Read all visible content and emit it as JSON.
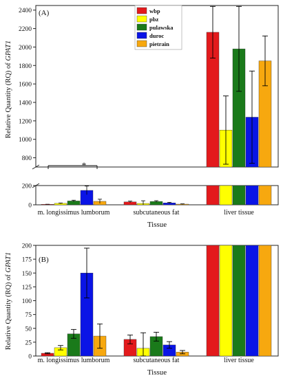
{
  "chart_data": [
    {
      "type": "bar",
      "panel_label": "(A)",
      "categories": [
        "m. longissimus lumborum",
        "subcutaneous fat",
        "liver tissue"
      ],
      "series": [
        {
          "name": "wbp",
          "color": "#e31a1c",
          "values": [
            5,
            30,
            2160
          ],
          "errors": [
            1,
            8,
            280
          ]
        },
        {
          "name": "pbz",
          "color": "#ffff00",
          "values": [
            15,
            14,
            1100
          ],
          "errors": [
            4,
            28,
            370
          ]
        },
        {
          "name": "pulawska",
          "color": "#1a7a1a",
          "values": [
            40,
            35,
            1980
          ],
          "errors": [
            8,
            8,
            460
          ]
        },
        {
          "name": "duroc",
          "color": "#0a14e6",
          "values": [
            150,
            20,
            1240
          ],
          "errors": [
            45,
            6,
            500
          ]
        },
        {
          "name": "pietrain",
          "color": "#f7a80f",
          "values": [
            36,
            7,
            1850
          ],
          "errors": [
            22,
            3,
            270
          ]
        }
      ],
      "ylabel_pre": "Relative Quantity (RQ) of ",
      "ylabel_gene": "GPAT1",
      "xlabel": "Tissue",
      "upper_axis": {
        "ylim": [
          700,
          2450
        ],
        "ticks": [
          800,
          1000,
          1200,
          1400,
          1600,
          1800,
          2000,
          2200,
          2400
        ]
      },
      "lower_axis": {
        "ylim": [
          0,
          200
        ],
        "ticks": [
          0,
          200
        ]
      },
      "annotation": "*",
      "legend_position": "top-center"
    },
    {
      "type": "bar",
      "panel_label": "(B)",
      "categories": [
        "m. longissimus lumborum",
        "subcutaneous fat",
        "liver tissue"
      ],
      "series": [
        {
          "name": "wbp",
          "color": "#e31a1c",
          "values": [
            5,
            30,
            200
          ],
          "errors": [
            1,
            8,
            0
          ]
        },
        {
          "name": "pbz",
          "color": "#ffff00",
          "values": [
            15,
            14,
            200
          ],
          "errors": [
            4,
            28,
            0
          ]
        },
        {
          "name": "pulawska",
          "color": "#1a7a1a",
          "values": [
            40,
            35,
            200
          ],
          "errors": [
            8,
            8,
            0
          ]
        },
        {
          "name": "duroc",
          "color": "#0a14e6",
          "values": [
            150,
            20,
            200
          ],
          "errors": [
            45,
            6,
            0
          ]
        },
        {
          "name": "pietrain",
          "color": "#f7a80f",
          "values": [
            36,
            7,
            200
          ],
          "errors": [
            22,
            3,
            0
          ]
        }
      ],
      "ylabel_pre": "Relative Quantity (RQ) of ",
      "ylabel_gene": "GPAT1",
      "xlabel": "Tissue",
      "ylim": [
        0,
        200
      ],
      "ticks": [
        0,
        25,
        50,
        75,
        100,
        125,
        150,
        175,
        200
      ]
    }
  ]
}
